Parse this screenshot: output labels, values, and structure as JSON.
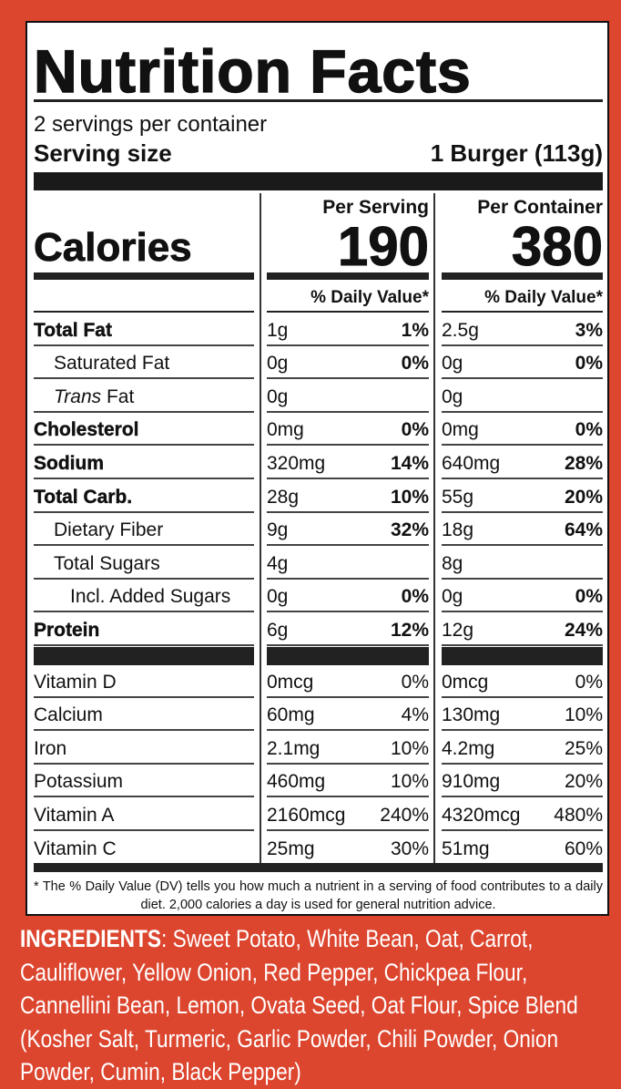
{
  "colors": {
    "background": "#dc452e",
    "label": "#ffffff",
    "text": "#111111"
  },
  "title": "Nutrition Facts",
  "servings_per_container": "2 servings per container",
  "serving_size": {
    "label": "Serving size",
    "value": "1 Burger (113g)"
  },
  "columns": {
    "per_serving": {
      "heading": "Per Serving",
      "calories": "190",
      "dv_heading": "% Daily Value*"
    },
    "per_container": {
      "heading": "Per Container",
      "calories": "380",
      "dv_heading": "% Daily Value*"
    }
  },
  "calories_label": "Calories",
  "nutrients": [
    {
      "name": "Total Fat",
      "style": "bold",
      "serving": "1g",
      "serving_dv": "1%",
      "container": "2.5g",
      "container_dv": "3%"
    },
    {
      "name": "Saturated Fat",
      "style": "indent",
      "serving": "0g",
      "serving_dv": "0%",
      "container": "0g",
      "container_dv": "0%"
    },
    {
      "name_italic": "Trans",
      "name": " Fat",
      "style": "indent",
      "serving": "0g",
      "serving_dv": "",
      "container": "0g",
      "container_dv": ""
    },
    {
      "name": "Cholesterol",
      "style": "bold",
      "serving": "0mg",
      "serving_dv": "0%",
      "container": "0mg",
      "container_dv": "0%"
    },
    {
      "name": "Sodium",
      "style": "bold",
      "serving": "320mg",
      "serving_dv": "14%",
      "container": "640mg",
      "container_dv": "28%"
    },
    {
      "name": "Total Carb.",
      "style": "bold",
      "serving": "28g",
      "serving_dv": "10%",
      "container": "55g",
      "container_dv": "20%"
    },
    {
      "name": "Dietary Fiber",
      "style": "indent",
      "serving": "9g",
      "serving_dv": "32%",
      "container": "18g",
      "container_dv": "64%"
    },
    {
      "name": "Total Sugars",
      "style": "indent",
      "serving": "4g",
      "serving_dv": "",
      "container": "8g",
      "container_dv": ""
    },
    {
      "name": "Incl. Added Sugars",
      "style": "indent2",
      "serving": "0g",
      "serving_dv": "0%",
      "container": "0g",
      "container_dv": "0%"
    },
    {
      "name": "Protein",
      "style": "bold",
      "serving": "6g",
      "serving_dv": "12%",
      "container": "12g",
      "container_dv": "24%"
    }
  ],
  "vitamins": [
    {
      "name": "Vitamin D",
      "serving": "0mcg",
      "serving_dv": "0%",
      "container": "0mcg",
      "container_dv": "0%"
    },
    {
      "name": "Calcium",
      "serving": "60mg",
      "serving_dv": "4%",
      "container": "130mg",
      "container_dv": "10%"
    },
    {
      "name": "Iron",
      "serving": "2.1mg",
      "serving_dv": "10%",
      "container": "4.2mg",
      "container_dv": "25%"
    },
    {
      "name": "Potassium",
      "serving": "460mg",
      "serving_dv": "10%",
      "container": "910mg",
      "container_dv": "20%"
    },
    {
      "name": "Vitamin A",
      "serving": "2160mcg",
      "serving_dv": "240%",
      "container": "4320mcg",
      "container_dv": "480%"
    },
    {
      "name": "Vitamin C",
      "serving": "25mg",
      "serving_dv": "30%",
      "container": "51mg",
      "container_dv": "60%"
    }
  ],
  "footnote": "* The % Daily Value (DV) tells you how much a nutrient in a serving of food contributes to a daily diet. 2,000 calories a day is used for general nutrition advice.",
  "ingredients": {
    "heading": "INGREDIENTS",
    "text": ": Sweet Potato, White Bean, Oat, Carrot, Cauliflower, Yellow Onion, Red Pepper, Chickpea Flour, Cannellini Bean, Lemon, Ovata Seed, Oat Flour, Spice Blend (Kosher Salt, Turmeric, Garlic Powder, Chili Powder, Onion Powder, Cumin, Black Pepper)"
  }
}
